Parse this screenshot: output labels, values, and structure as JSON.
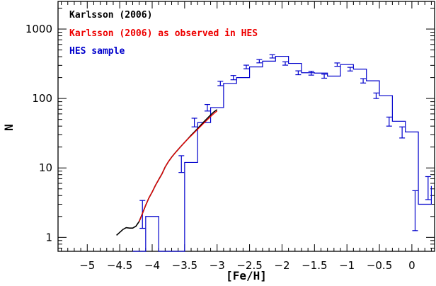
{
  "chart_data": {
    "type": "line",
    "title": "",
    "xlabel": "[Fe/H]",
    "ylabel": "N",
    "xlim": [
      -5.45,
      0.35
    ],
    "ylim": [
      0.63,
      2500
    ],
    "yscale": "log",
    "x_ticks": [
      -5,
      -4.5,
      -4,
      -3.5,
      -3,
      -2.5,
      -2,
      -1.5,
      -1,
      -0.5,
      0
    ],
    "x_tick_labels": [
      "−5",
      "−4.5",
      "−4",
      "−3.5",
      "−3",
      "−2.5",
      "−2",
      "−1.5",
      "−1",
      "−0.5",
      "0"
    ],
    "y_ticks": [
      1,
      10,
      100,
      1000
    ],
    "y_tick_labels": [
      "1",
      "10",
      "100",
      "1000"
    ],
    "grid": false,
    "legend_position": "top-left",
    "legend": [
      {
        "label": "Karlsson (2006)",
        "color": "#000000"
      },
      {
        "label": "Karlsson (2006) as observed in HES",
        "color": "#ee0000"
      },
      {
        "label": "HES sample",
        "color": "#0000cc"
      }
    ],
    "series": [
      {
        "name": "HES sample",
        "style": "step-histogram-with-errorbars",
        "color": "#0000cc",
        "bin_edges": [
          -4.3,
          -4.2,
          -4.1,
          -4.0,
          -3.9,
          -3.8,
          -3.7,
          -3.6,
          -3.5,
          -3.4,
          -3.3,
          -3.2,
          -3.1,
          -3.0,
          -2.9,
          -2.8,
          -2.7,
          -2.6,
          -2.5,
          -2.4,
          -2.3,
          -2.2,
          -2.1,
          -2.0,
          -1.9,
          -1.8,
          -1.7,
          -1.6,
          -1.5,
          -1.4,
          -1.3,
          -1.2,
          -1.1,
          -1.0,
          -0.9,
          -0.8,
          -0.7,
          -0.6,
          -0.5,
          -0.4,
          -0.3,
          -0.2,
          -0.1,
          0.0,
          0.1,
          0.2,
          0.3
        ],
        "counts": [
          0,
          0,
          2,
          2,
          0,
          0,
          0,
          0,
          12,
          12,
          45,
          45,
          74,
          74,
          165,
          165,
          200,
          200,
          285,
          285,
          345,
          345,
          405,
          405,
          320,
          320,
          235,
          235,
          232,
          232,
          210,
          210,
          308,
          308,
          265,
          265,
          180,
          180,
          110,
          110,
          47,
          47,
          33,
          33,
          3,
          3,
          5.5
        ],
        "errorbars": [
          {
            "x": -4.15,
            "low": 1.35,
            "high": 3.4
          },
          {
            "x": -3.55,
            "low": 8.6,
            "high": 15
          },
          {
            "x": -3.35,
            "low": 39,
            "high": 52
          },
          {
            "x": -3.15,
            "low": 66,
            "high": 82
          },
          {
            "x": -2.95,
            "low": 153,
            "high": 177
          },
          {
            "x": -2.75,
            "low": 186,
            "high": 214
          },
          {
            "x": -2.55,
            "low": 268,
            "high": 302
          },
          {
            "x": -2.35,
            "low": 326,
            "high": 364
          },
          {
            "x": -2.15,
            "low": 383,
            "high": 427
          },
          {
            "x": -1.95,
            "low": 302,
            "high": 338
          },
          {
            "x": -1.75,
            "low": 220,
            "high": 250
          },
          {
            "x": -1.55,
            "low": 217,
            "high": 247
          },
          {
            "x": -1.35,
            "low": 196,
            "high": 224
          },
          {
            "x": -1.15,
            "low": 291,
            "high": 325
          },
          {
            "x": -0.95,
            "low": 249,
            "high": 281
          },
          {
            "x": -0.75,
            "low": 167,
            "high": 193
          },
          {
            "x": -0.55,
            "low": 100,
            "high": 120
          },
          {
            "x": -0.35,
            "low": 40,
            "high": 54
          },
          {
            "x": -0.15,
            "low": 27,
            "high": 39
          },
          {
            "x": 0.05,
            "low": 1.25,
            "high": 4.7
          },
          {
            "x": 0.25,
            "low": 3.5,
            "high": 7.5
          }
        ]
      },
      {
        "name": "Karlsson (2006)",
        "color": "#000000",
        "x": [
          -4.55,
          -4.5,
          -4.45,
          -4.4,
          -4.35,
          -4.3,
          -4.25,
          -4.2,
          -4.15,
          -4.1,
          -4.05,
          -4.0,
          -3.95,
          -3.9,
          -3.85,
          -3.8,
          -3.75,
          -3.7,
          -3.65,
          -3.6,
          -3.55,
          -3.5,
          -3.45,
          -3.4,
          -3.35,
          -3.3,
          -3.25,
          -3.2,
          -3.15,
          -3.1,
          -3.05,
          -3.0
        ],
        "y": [
          1.07,
          1.18,
          1.3,
          1.38,
          1.36,
          1.36,
          1.45,
          1.7,
          2.2,
          2.9,
          3.7,
          4.5,
          5.6,
          6.8,
          8.2,
          10.3,
          12.3,
          14.3,
          16.3,
          18.4,
          20.8,
          23.4,
          26.2,
          29.5,
          33.0,
          37.0,
          41.5,
          46.5,
          52.0,
          58.0,
          64.0,
          69.0
        ]
      },
      {
        "name": "Karlsson (2006) as observed in HES",
        "color": "#ee0000",
        "x": [
          -4.2,
          -4.15,
          -4.1,
          -4.05,
          -4.0,
          -3.95,
          -3.9,
          -3.85,
          -3.8,
          -3.75,
          -3.7,
          -3.65,
          -3.6,
          -3.55,
          -3.5,
          -3.45,
          -3.4,
          -3.35,
          -3.3,
          -3.25,
          -3.2,
          -3.15,
          -3.1,
          -3.05,
          -3.0
        ],
        "y": [
          1.7,
          2.2,
          2.9,
          3.7,
          4.5,
          5.6,
          6.8,
          8.2,
          10.3,
          12.3,
          14.3,
          16.3,
          18.4,
          20.8,
          23.4,
          26.2,
          29.0,
          32.3,
          36.0,
          40.0,
          44.5,
          49.5,
          55.0,
          60.5,
          66.0
        ]
      }
    ]
  }
}
